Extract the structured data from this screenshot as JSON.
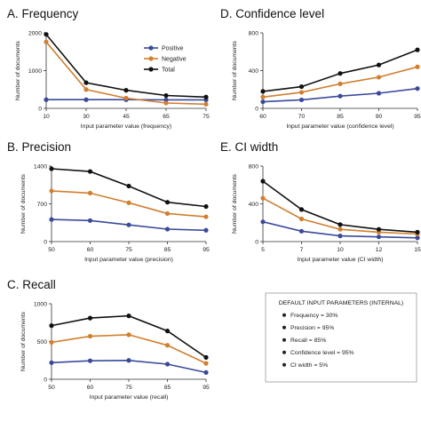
{
  "colors": {
    "positive": "#3a4a9a",
    "negative": "#d17f2f",
    "total": "#111111",
    "axis": "#333333",
    "box_border": "#999999"
  },
  "legend": {
    "placement": "top-right of panel A",
    "entries": [
      "Positive",
      "Negative",
      "Total"
    ]
  },
  "params_box": {
    "header": "DEFAULT INPUT PARAMETERS (INTERNAL)",
    "items": [
      "Frequency = 30%",
      "Precision = 95%",
      "Recall = 85%",
      "Confidence level = 95%",
      "CI width = 5%"
    ]
  },
  "chart_data": [
    {
      "id": "A",
      "type": "line",
      "title": "A. Frequency",
      "xlabel": "Input parameter value (frequency)",
      "ylabel": "Number of documents",
      "x": [
        "10",
        "30",
        "45",
        "65",
        "75"
      ],
      "yticks": [
        "0",
        "1000",
        "2000"
      ],
      "ylim": [
        0,
        2000
      ],
      "series": [
        {
          "name": "Positive",
          "values": [
            230,
            230,
            230,
            225,
            225
          ]
        },
        {
          "name": "Negative",
          "values": [
            1760,
            500,
            270,
            140,
            110
          ]
        },
        {
          "name": "Total",
          "values": [
            1960,
            680,
            480,
            340,
            300
          ]
        }
      ]
    },
    {
      "id": "D",
      "type": "line",
      "title": "D. Confidence level",
      "xlabel": "Input parameter value (confidence level)",
      "ylabel": "Number of documents",
      "x": [
        "60",
        "70",
        "85",
        "90",
        "95"
      ],
      "yticks": [
        "0",
        "400",
        "800"
      ],
      "ylim": [
        0,
        800
      ],
      "series": [
        {
          "name": "Positive",
          "values": [
            70,
            90,
            130,
            160,
            210
          ]
        },
        {
          "name": "Negative",
          "values": [
            120,
            170,
            260,
            330,
            440
          ]
        },
        {
          "name": "Total",
          "values": [
            180,
            230,
            370,
            460,
            620
          ]
        }
      ]
    },
    {
      "id": "B",
      "type": "line",
      "title": "B. Precision",
      "xlabel": "Input parameter value (precision)",
      "ylabel": "Number of documents",
      "x": [
        "50",
        "60",
        "75",
        "85",
        "95"
      ],
      "yticks": [
        "0",
        "700",
        "1400"
      ],
      "ylim": [
        0,
        1400
      ],
      "series": [
        {
          "name": "Positive",
          "values": [
            410,
            390,
            310,
            230,
            210
          ]
        },
        {
          "name": "Negative",
          "values": [
            940,
            900,
            720,
            520,
            460
          ]
        },
        {
          "name": "Total",
          "values": [
            1350,
            1300,
            1030,
            730,
            650
          ]
        }
      ]
    },
    {
      "id": "E",
      "type": "line",
      "title": "E. CI width",
      "xlabel": "Input parameter value (CI width)",
      "ylabel": "Number of documents",
      "x": [
        "5",
        "7",
        "10",
        "12",
        "15"
      ],
      "yticks": [
        "0",
        "400",
        "800"
      ],
      "ylim": [
        0,
        800
      ],
      "series": [
        {
          "name": "Positive",
          "values": [
            210,
            110,
            60,
            50,
            40
          ]
        },
        {
          "name": "Negative",
          "values": [
            460,
            240,
            130,
            100,
            80
          ]
        },
        {
          "name": "Total",
          "values": [
            640,
            340,
            180,
            130,
            100
          ]
        }
      ]
    },
    {
      "id": "C",
      "type": "line",
      "title": "C. Recall",
      "xlabel": "Input parameter value (recall)",
      "ylabel": "Number of documents",
      "x": [
        "50",
        "60",
        "75",
        "85",
        "95"
      ],
      "yticks": [
        "0",
        "500",
        "1000"
      ],
      "ylim": [
        0,
        1000
      ],
      "series": [
        {
          "name": "Positive",
          "values": [
            220,
            245,
            250,
            200,
            90
          ]
        },
        {
          "name": "Negative",
          "values": [
            490,
            570,
            590,
            450,
            210
          ]
        },
        {
          "name": "Total",
          "values": [
            710,
            810,
            840,
            640,
            290
          ]
        }
      ]
    }
  ]
}
